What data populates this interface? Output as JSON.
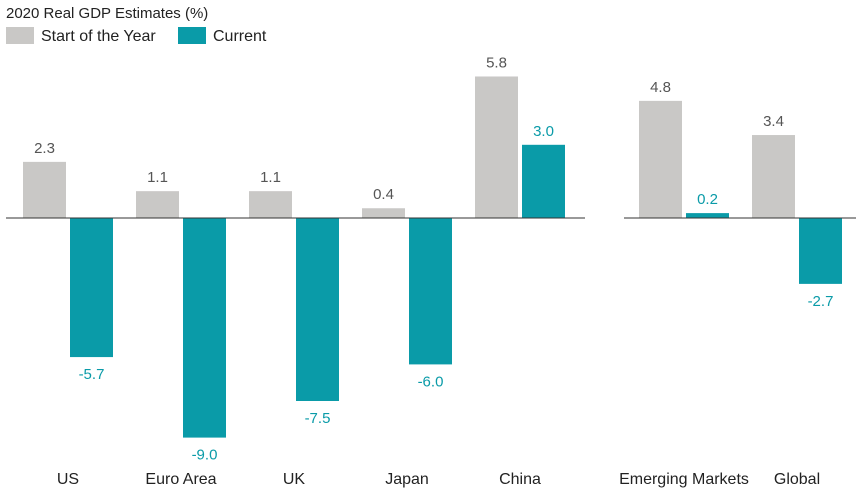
{
  "chart_data": {
    "type": "bar",
    "title": "2020 Real GDP Estimates (%)",
    "colors": {
      "start": "#c9c8c6",
      "current": "#0a9ba8",
      "label_start": "#555555",
      "label_current": "#0a9ba8",
      "axis": "#333333"
    },
    "series": [
      {
        "name": "Start of the Year",
        "key": "start"
      },
      {
        "name": "Current",
        "key": "current"
      }
    ],
    "panels": [
      {
        "categories": [
          "US",
          "Euro Area",
          "UK",
          "Japan",
          "China"
        ],
        "start": [
          2.3,
          1.1,
          1.1,
          0.4,
          5.8
        ],
        "current": [
          -5.7,
          -9.0,
          -7.5,
          -6.0,
          3.0
        ],
        "start_labels": [
          "2.3",
          "1.1",
          "1.1",
          "0.4",
          "5.8"
        ],
        "current_labels": [
          "-5.7",
          "-9.0",
          "-7.5",
          "-6.0",
          "3.0"
        ]
      },
      {
        "categories": [
          "Emerging Markets",
          "Global"
        ],
        "start": [
          4.8,
          3.4
        ],
        "current": [
          0.2,
          -2.7
        ],
        "start_labels": [
          "4.8",
          "3.4"
        ],
        "current_labels": [
          "0.2",
          "-2.7"
        ]
      }
    ],
    "ylim": [
      -9.0,
      5.8
    ],
    "legend_position": "top-left",
    "grid": false
  }
}
